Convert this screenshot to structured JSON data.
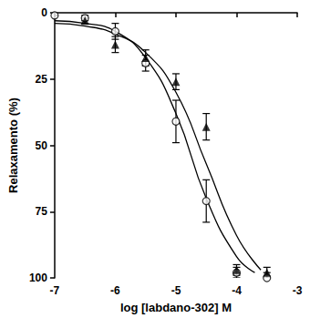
{
  "chart_data": {
    "type": "scatter",
    "x_label": "log [labdano-302] M",
    "y_label": "Relaxamento (%)",
    "xlim": [
      -7,
      -3
    ],
    "xticks": [
      -7,
      -6,
      -5,
      -4,
      -3
    ],
    "ylim": [
      0,
      100
    ],
    "yticks": [
      0,
      25,
      50,
      75,
      100
    ],
    "grid": false,
    "series": [
      {
        "type": "scatter",
        "marker": "open_circle",
        "color": "#000000",
        "x": [
          -7,
          -6.5,
          -6,
          -5.5,
          -5,
          -4.5,
          -4,
          -3.5
        ],
        "values": [
          1,
          2,
          7,
          19,
          41,
          71,
          98,
          100
        ],
        "errors": [
          0,
          1,
          3,
          3,
          8,
          8,
          2,
          2
        ]
      },
      {
        "type": "scatter",
        "marker": "triangle",
        "color": "#000000",
        "x": [
          -6.5,
          -6,
          -5.5,
          -5,
          -4.5,
          -4,
          -3.5
        ],
        "values": [
          3,
          12,
          17,
          26,
          43,
          97,
          98
        ],
        "errors": [
          1,
          3,
          3,
          3,
          5,
          2,
          2
        ]
      },
      {
        "type": "line",
        "color": "#000000",
        "line_style": "solid",
        "x": [
          -7,
          -6.5,
          -6,
          -5.5,
          -5,
          -4.5,
          -4,
          -3.7
        ],
        "values": [
          3,
          4,
          7,
          17,
          38,
          70,
          92,
          98
        ]
      },
      {
        "type": "line",
        "color": "#000000",
        "line_style": "solid",
        "x": [
          -7,
          -6.5,
          -6,
          -5.5,
          -5,
          -4.5,
          -4,
          -3.6
        ],
        "values": [
          4,
          5,
          8,
          15,
          30,
          57,
          84,
          97
        ]
      }
    ]
  }
}
